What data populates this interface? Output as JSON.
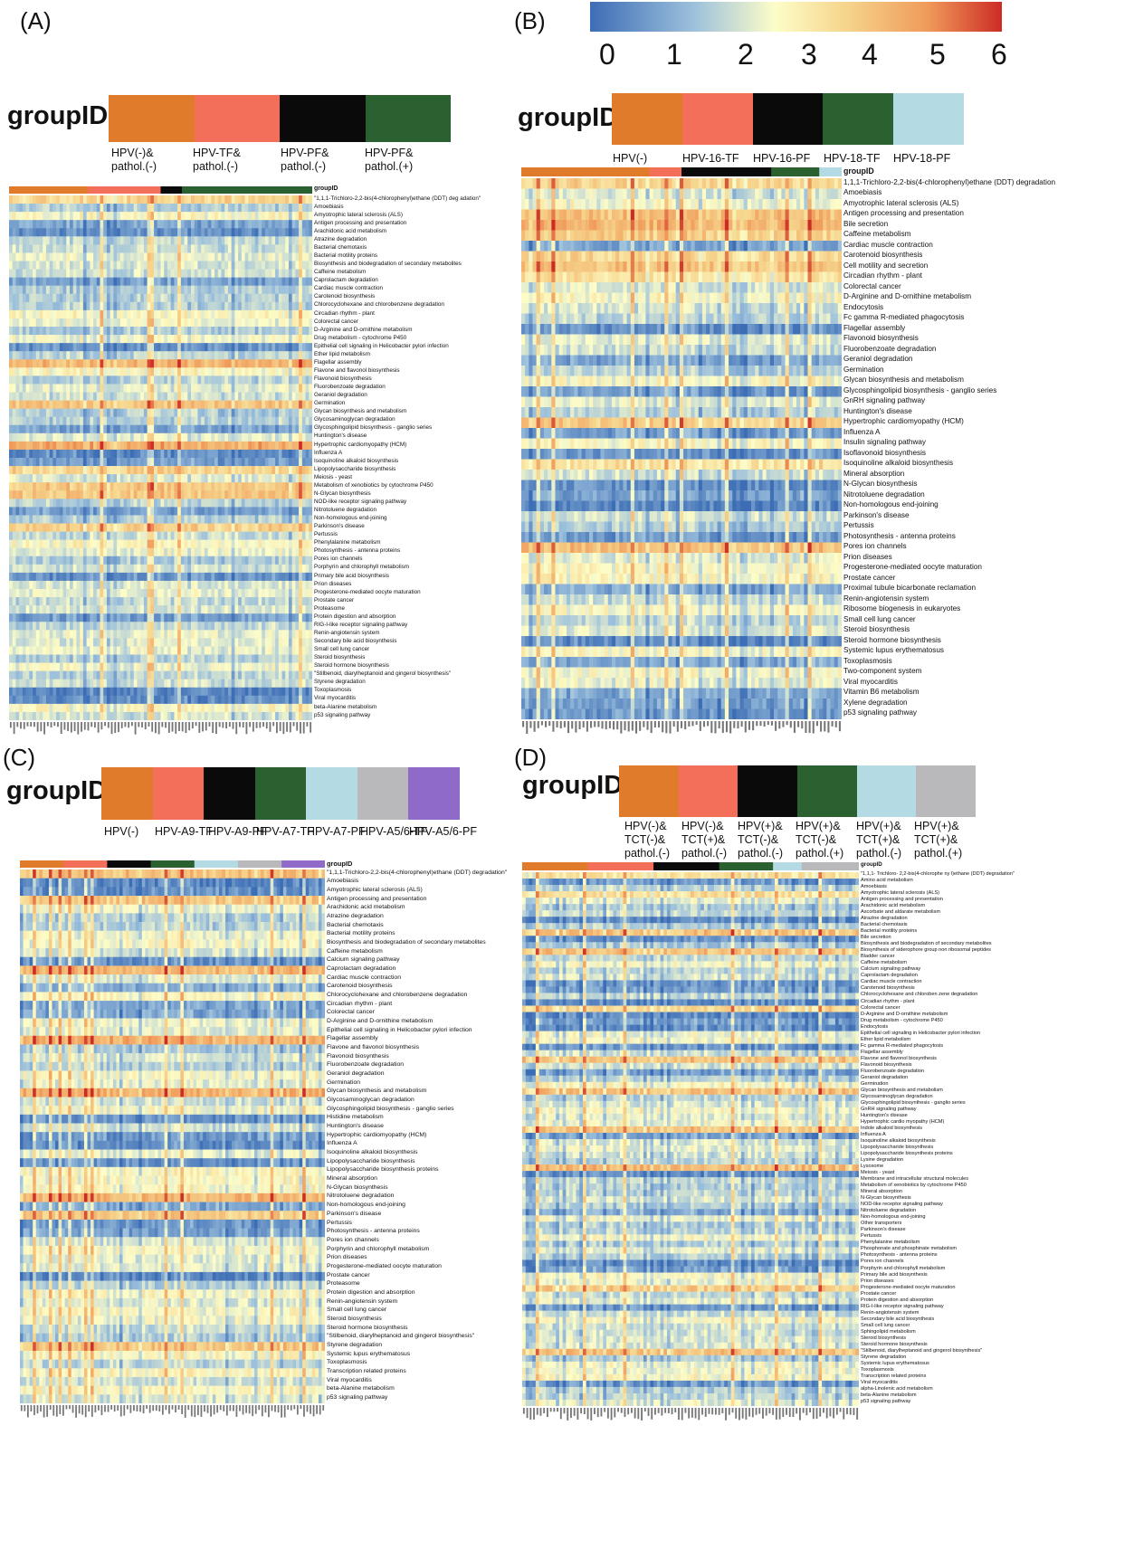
{
  "colors": {
    "orange": "#e07b2c",
    "salmon": "#f36f5a",
    "black": "#0a0a0a",
    "green": "#2b6030",
    "lightblue": "#b4dbe4",
    "gray": "#b9b9bb",
    "purple": "#8f6ac8",
    "scale_low": "#3d6db5",
    "scale_mid": "#fdfdc8",
    "scale_high": "#cc2c25"
  },
  "color_scale": {
    "ticks": [
      "0",
      "1",
      "2",
      "3",
      "4",
      "5",
      "6"
    ]
  },
  "panels": [
    {
      "label": "(A)",
      "group_title": "groupID",
      "row_header": "groupID",
      "groups": [
        {
          "label": "HPV(-)&\npathol.(-)",
          "color": "orange",
          "frac": 0.26
        },
        {
          "label": "HPV-TF&\npathol.(-)",
          "color": "salmon",
          "frac": 0.24
        },
        {
          "label": "HPV-PF&\npathol.(-)",
          "color": "black",
          "frac": 0.07
        },
        {
          "label": "HPV-PF&\npathol.(+)",
          "color": "green",
          "frac": 0.43
        }
      ],
      "rows": [
        "\"1,1,1-Trichloro-2,2-bis(4-chlorophenyl)ethane (DDT) deg adation\"",
        "Amoebiasis",
        "Amyotrophic lateral sclerosis (ALS)",
        "Antigen processing and presentation",
        "Arachidonic acid metabolism",
        "Atrazine degradation",
        "Bacterial chemotaxis",
        "Bacterial motility proteins",
        "Biosynthesis and biodegradation of secondary metabolites",
        "Caffeine metabolism",
        "Caprolactam degradation",
        "Cardiac muscle contraction",
        "Carotenoid biosynthesis",
        "Chlorocyclohexane and chlorobenzene degradation",
        "Circadian rhythm - plant",
        "Colorectal cancer",
        "D-Arginine and D-ornithine metabolism",
        "Drug metabolism - cytochrome P450",
        "Epithelial cell signaling in Helicobacter pylori infection",
        "Ether lipid metabolism",
        "Flagellar assembly",
        "Flavone and flavonol biosynthesis",
        "Flavonoid biosynthesis",
        "Fluorobenzoate degradation",
        "Geraniol degradation",
        "Germination",
        "Glycan biosynthesis and metabolism",
        "Glycosaminoglycan degradation",
        "Glycosphingolipid biosynthesis - ganglio series",
        "Huntington's disease",
        "Hypertrophic cardiomyopathy (HCM)",
        "Influenza A",
        "Isoquinoline alkaloid biosynthesis",
        "Lipopolysaccharide biosynthesis",
        "Meiosis - yeast",
        "Metabolism of xenobiotics by cytochrome P450",
        "N-Glycan biosynthesis",
        "NOD-like receptor signaling pathway",
        "Nitrotoluene degradation",
        "Non-homologous end-joining",
        "Parkinson's disease",
        "Pertussis",
        "Phenylalanine metabolism",
        "Photosynthesis - antenna proteins",
        "Pores ion channels",
        "Porphyrin and chlorophyll metabolism",
        "Primary bile acid biosynthesis",
        "Prion diseases",
        "Progesterone-mediated oocyte maturation",
        "Prostate cancer",
        "Proteasome",
        "Protein digestion and absorption",
        "RIG-I-like receptor signaling pathway",
        "Renin-angiotensin system",
        "Secondary bile acid biosynthesis",
        "Small cell lung cancer",
        "Steroid biosynthesis",
        "Steroid hormone biosynthesis",
        "\"Stilbenoid, diarylheptanoid and gingerol biosynthesis\"",
        "Styrene degradation",
        "Toxoplasmosis",
        "Viral myocarditis",
        "beta-Alanine metabolism",
        "p53 signaling pathway"
      ]
    },
    {
      "label": "(B)",
      "group_title": "groupID",
      "row_header": "groupID",
      "groups": [
        {
          "label": "HPV(-)",
          "color": "orange",
          "frac": 0.4
        },
        {
          "label": "HPV-16-TF",
          "color": "salmon",
          "frac": 0.1
        },
        {
          "label": "HPV-16-PF",
          "color": "black",
          "frac": 0.28
        },
        {
          "label": "HPV-18-TF",
          "color": "green",
          "frac": 0.15
        },
        {
          "label": "HPV-18-PF",
          "color": "lightblue",
          "frac": 0.07
        }
      ],
      "rows": [
        "1,1,1-Trichloro-2,2-bis(4-chlorophenyl)ethane (DDT) degradation",
        "Amoebiasis",
        "Amyotrophic lateral sclerosis (ALS)",
        "Antigen processing and presentation",
        "Bile secretion",
        "Caffeine metabolism",
        "Cardiac muscle contraction",
        "Carotenoid biosynthesis",
        "Cell motility and secretion",
        "Circadian rhythm - plant",
        "Colorectal cancer",
        "D-Arginine and D-ornithine metabolism",
        "Endocytosis",
        "Fc gamma R-mediated phagocytosis",
        "Flagellar assembly",
        "Flavonoid biosynthesis",
        "Fluorobenzoate degradation",
        "Geraniol degradation",
        "Germination",
        "Glycan biosynthesis and metabolism",
        "Glycosphingolipid biosynthesis - ganglio series",
        "GnRH signaling pathway",
        "Huntington's disease",
        "Hypertrophic cardiomyopathy (HCM)",
        "Influenza A",
        "Insulin signaling pathway",
        "Isoflavonoid biosynthesis",
        "Isoquinoline alkaloid biosynthesis",
        "Mineral absorption",
        "N-Glycan biosynthesis",
        "Nitrotoluene degradation",
        "Non-homologous end-joining",
        "Parkinson's disease",
        "Pertussis",
        "Photosynthesis - antenna proteins",
        "Pores ion channels",
        "Prion diseases",
        "Progesterone-mediated oocyte maturation",
        "Prostate cancer",
        "Proximal tubule bicarbonate reclamation",
        "Renin-angiotensin system",
        "Ribosome biogenesis in eukaryotes",
        "Small cell lung cancer",
        "Steroid biosynthesis",
        "Steroid hormone biosynthesis",
        "Systemic lupus erythematosus",
        "Toxoplasmosis",
        "Two-component system",
        "Viral myocarditis",
        "Vitamin B6 metabolism",
        "Xylene degradation",
        "p53 signaling pathway"
      ]
    },
    {
      "label": "(C)",
      "group_title": "groupID",
      "row_header": "groupID",
      "groups": [
        {
          "label": "HPV(-)",
          "color": "orange",
          "frac": 0.143
        },
        {
          "label": "HPV-A9-TF",
          "color": "salmon",
          "frac": 0.143
        },
        {
          "label": "HPV-A9-PF",
          "color": "black",
          "frac": 0.143
        },
        {
          "label": "HPV-A7-TF",
          "color": "green",
          "frac": 0.143
        },
        {
          "label": "HPV-A7-PF",
          "color": "lightblue",
          "frac": 0.143
        },
        {
          "label": "HPV-A5/6-TF",
          "color": "gray",
          "frac": 0.143
        },
        {
          "label": "HPV-A5/6-PF",
          "color": "purple",
          "frac": 0.142
        }
      ],
      "rows": [
        "\"1,1,1-Trichloro-2,2-bis(4-chlorophenyl)ethane (DDT) degradation\"",
        "Amoebiasis",
        "Amyotrophic lateral sclerosis (ALS)",
        "Antigen processing and presentation",
        "Arachidonic acid metabolism",
        "Atrazine degradation",
        "Bacterial chemotaxis",
        "Bacterial motility proteins",
        "Biosynthesis and biodegradation of secondary metabolites",
        "Caffeine metabolism",
        "Calcium signaling pathway",
        "Caprolactam degradation",
        "Cardiac muscle contraction",
        "Carotenoid biosynthesis",
        "Chlorocyclohexane and chlorobenzene degradation",
        "Circadian rhythm - plant",
        "Colorectal cancer",
        "D-Arginine and D-ornithine metabolism",
        "Epithelial cell signaling in Helicobacter pylori infection",
        "Flagellar assembly",
        "Flavone and flavonol biosynthesis",
        "Flavonoid biosynthesis",
        "Fluorobenzoate degradation",
        "Geraniol degradation",
        "Germination",
        "Glycan biosynthesis and metabolism",
        "Glycosaminoglycan degradation",
        "Glycosphingolipid biosynthesis - ganglio series",
        "Histidine metabolism",
        "Huntington's disease",
        "Hypertrophic cardiomyopathy (HCM)",
        "Influenza A",
        "Isoquinoline alkaloid biosynthesis",
        "Lipopolysaccharide biosynthesis",
        "Lipopolysaccharide biosynthesis proteins",
        "Mineral absorption",
        "N-Glycan biosynthesis",
        "Nitrotoluene degradation",
        "Non-homologous end-joining",
        "Parkinson's disease",
        "Pertussis",
        "Photosynthesis - antenna proteins",
        "Pores ion channels",
        "Porphyrin and chlorophyll metabolism",
        "Prion diseases",
        "Progesterone-mediated oocyte maturation",
        "Prostate cancer",
        "Proteasome",
        "Protein digestion and absorption",
        "Renin-angiotensin system",
        "Small cell lung cancer",
        "Steroid biosynthesis",
        "Steroid hormone biosynthesis",
        "\"Stilbenoid, diarylheptanoid and gingerol biosynthesis\"",
        "Styrene degradation",
        "Systemic lupus erythematosus",
        "Toxoplasmosis",
        "Transcription related proteins",
        "Viral myocarditis",
        "beta-Alanine metabolism",
        "p53 signaling pathway"
      ]
    },
    {
      "label": "(D)",
      "group_title": "groupID",
      "row_header": "groupID",
      "groups": [
        {
          "label": "HPV(-)&\nTCT(-)&\npathol.(-)",
          "color": "orange",
          "frac": 0.195
        },
        {
          "label": "HPV(-)&\nTCT(+)&\npathol.(-)",
          "color": "salmon",
          "frac": 0.195
        },
        {
          "label": "HPV(+)&\nTCT(-)&\npathol.(-)",
          "color": "black",
          "frac": 0.195
        },
        {
          "label": "HPV(+)&\nTCT(-)&\npathol.(+)",
          "color": "green",
          "frac": 0.16
        },
        {
          "label": "HPV(+)&\nTCT(+)&\npathol.(-)",
          "color": "lightblue",
          "frac": 0.085
        },
        {
          "label": "HPV(+)&\nTCT(+)&\npathol.(+)",
          "color": "gray",
          "frac": 0.17
        }
      ],
      "rows": [
        "\"1,1,1- Trichloro- 2,2-bis(4-chlorophe ny l)ethane (DDT) degradation\"",
        "Amino acid metabolism",
        "Amoebiasis",
        "Amyotrophic lateral sclerosis (ALS)",
        "Antigen processing and presentation",
        "Arachidonic acid metabolism",
        "Ascorbate and aldarate metabolism",
        "Atrazine degradation",
        "Bacterial chemotaxis",
        "Bacterial motility proteins",
        "Bile secretion",
        "Biosynthesis and biodegradation of secondary metabolites",
        "Biosynthesis of siderophore group non ribosomal peptides",
        "Bladder cancer",
        "Caffeine metabolism",
        "Calcium signaling pathway",
        "Caprolactam degradation",
        "Cardiac muscle contraction",
        "Carotenoid biosynthesis",
        "Chlorocyclohexane and chloroben zene degradation",
        "Circadian rhythm - plant",
        "Colorectal cancer",
        "D-Arginine and D-ornithine metabolism",
        "Drug metabolism - cytochrome P450",
        "Endocytosis",
        "Epithelial cell signaling in Helicobacter pylori infection",
        "Ether lipid metabolism",
        "Fc gamma R-mediated phagocytosis",
        "Flagellar assembly",
        "Flavone and flavonol biosynthesis",
        "Flavonoid biosynthesis",
        "Fluorobenzoate degradation",
        "Geraniol degradation",
        "Germination",
        "Glycan biosynthesis and metabolism",
        "Glycosaminoglycan degradation",
        "Glycosphingolipid biosynthesis - ganglio series",
        "GnRH signaling pathway",
        "Huntington's disease",
        "Hypertrophic cardio myopathy (HCM)",
        "Indole alkaloid biosynthesis",
        "Influenza A",
        "Isoquinoline alkaloid biosynthesis",
        "Lipopolysaccharide biosynthesis",
        "Lipopolysaccharide biosynthesis proteins",
        "Lysine degradation",
        "Lysosome",
        "Meiosis - yeast",
        "Membrane and intracellular structural molecules",
        "Metabolism of xenobiotics by cytochrome P450",
        "Mineral absorption",
        "N-Glycan biosynthesis",
        "NOD-like receptor signaling pathway",
        "Nitrotoluene degradation",
        "Non-homologous end-joining",
        "Other transporters",
        "Parkinson's disease",
        "Pertussis",
        "Phenylalanine metabolism",
        "Phosphonate and phosphinate metabolism",
        "Photosynthesis - antenna proteins",
        "Pores ion channels",
        "Porphyrin and chlorophyll metabolism",
        "Primary bile acid biosynthesis",
        "Prion diseases",
        "Progesterone-mediated oocyte maturation",
        "Prostate cancer",
        "Protein digestion and absorption",
        "RIG-I-like receptor signaling pathway",
        "Renin-angiotensin system",
        "Secondary bile acid biosynthesis",
        "Small cell lung cancer",
        "Sphingolipid metabolism",
        "Steroid biosynthesis",
        "Steroid hormone biosynthesis",
        "\"Stilbenoid, diarylheptanoid and gingerol biosynthesis\"",
        "Styrene degradation",
        "Systemic lupus erythematosus",
        "Toxoplasmosis",
        "Transcription related proteins",
        "Viral myocarditis",
        "alpha-Linolenic acid metabolism",
        "beta-Alanine metabolism",
        "p53 signaling pathway"
      ]
    }
  ],
  "chart_data": {
    "type": "heatmap",
    "title": "",
    "color_scale_range": [
      0,
      6
    ],
    "note_values": "cell values are not individually readable; heatmaps show KEGG pathway abundance per sample on 0-6 scale"
  }
}
